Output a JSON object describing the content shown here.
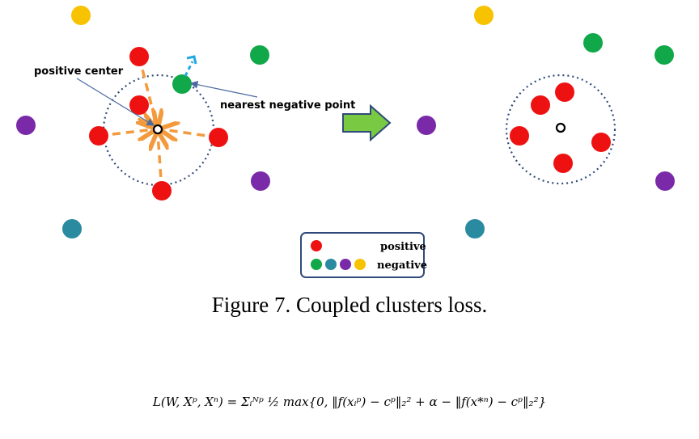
{
  "labels": {
    "positive_center": "positive center",
    "nearest_negative": "nearest negative point"
  },
  "legend": {
    "positive": "positive",
    "negative": "negative"
  },
  "caption": "Figure 7. Coupled clusters loss.",
  "formula": "L(W, Xᵖ, Xⁿ) = Σᵢᴺᵖ ½ max{0, ‖f(xᵢᵖ) − cᵖ‖₂² + α − ‖f(x*ⁿ) − cᵖ‖₂²}",
  "colors": {
    "red": "#ee1111",
    "green": "#11a84a",
    "teal": "#2a8aa0",
    "purple": "#7a2aa8",
    "yellow": "#f7c200",
    "arrow_orange": "#f39a3c",
    "boundary": "#2f4a7a",
    "arrow_green": "#7ac943",
    "legend_border": "#2f4a7a",
    "pointer_blue": "#22a8e0"
  }
}
